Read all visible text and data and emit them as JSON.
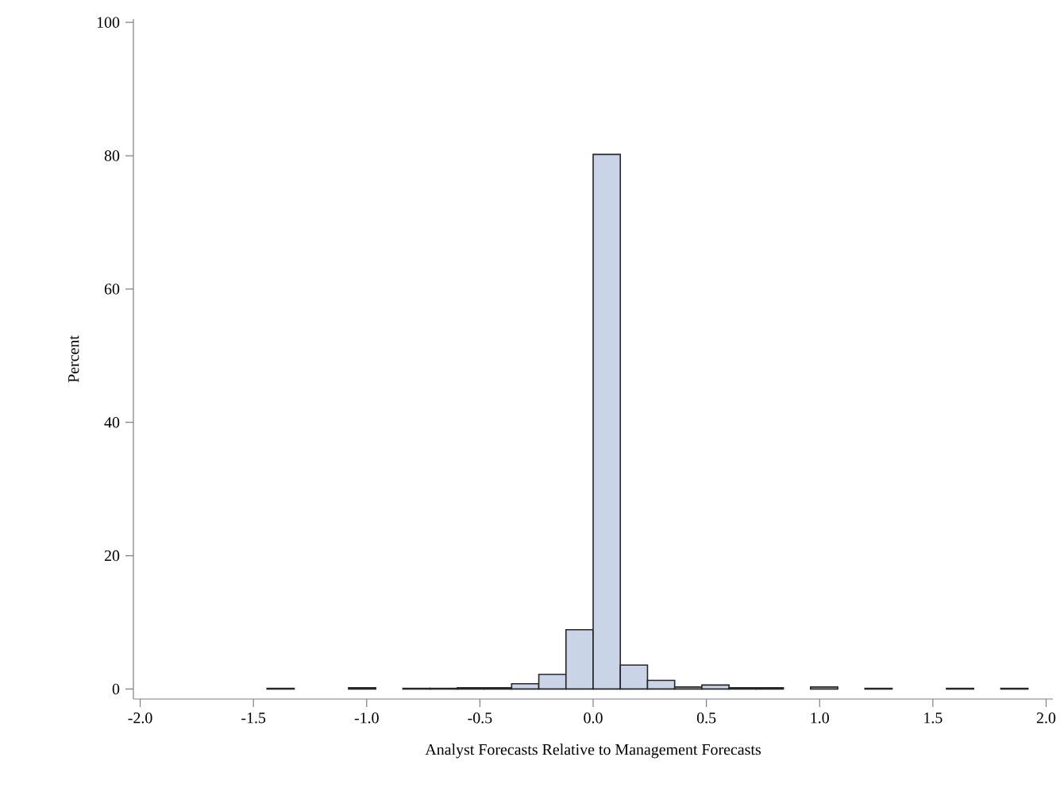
{
  "chart_data": {
    "type": "histogram",
    "xlabel": "Analyst Forecasts Relative to Management Forecasts",
    "ylabel": "Percent",
    "bins": [
      -1.44,
      -1.32,
      -1.2,
      -1.08,
      -0.96,
      -0.84,
      -0.72,
      -0.6,
      -0.48,
      -0.36,
      -0.24,
      -0.12,
      0,
      0.12,
      0.24,
      0.36,
      0.48,
      0.6,
      0.72,
      0.84,
      0.96,
      1.08,
      1.2,
      1.32,
      1.44,
      1.56,
      1.68,
      1.8,
      1.92
    ],
    "values": [
      0.1,
      0,
      0,
      0.2,
      0,
      0.1,
      0.1,
      0.2,
      0.2,
      0.8,
      2.2,
      8.9,
      80.2,
      3.6,
      1.3,
      0.3,
      0.6,
      0.2,
      0.2,
      0,
      0.3,
      0,
      0.1,
      0,
      0,
      0.1,
      0,
      0.1
    ],
    "color": "#c9d5e6",
    "xlim": [
      -2.03,
      2.03
    ],
    "ylim": [
      -1.5,
      100.5
    ],
    "xticks": [
      {
        "value": -2,
        "label": "-2.0"
      },
      {
        "value": -1.5,
        "label": "-1.5"
      },
      {
        "value": -1,
        "label": "-1.0"
      },
      {
        "value": -0.5,
        "label": "-0.5"
      },
      {
        "value": 0,
        "label": "0.0"
      },
      {
        "value": 0.5,
        "label": "0.5"
      },
      {
        "value": 1,
        "label": "1.0"
      },
      {
        "value": 1.5,
        "label": "1.5"
      },
      {
        "value": 2,
        "label": "2.0"
      }
    ],
    "yticks": [
      0,
      20,
      40,
      60,
      80,
      100
    ],
    "grid": false
  }
}
